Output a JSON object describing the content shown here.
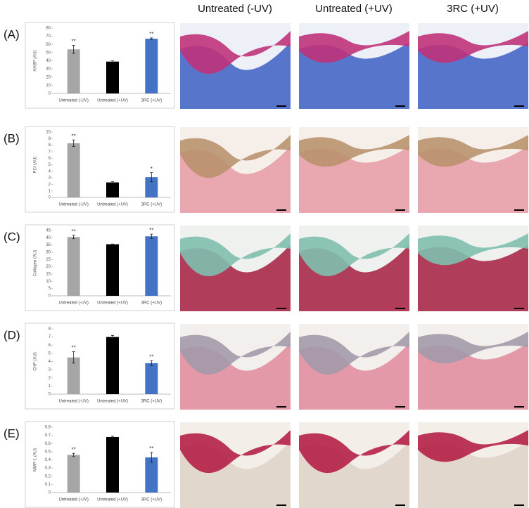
{
  "column_headers": [
    "Untreated (-UV)",
    "Untreated (+UV)",
    "3RC (+UV)"
  ],
  "panel_labels": [
    "(A)",
    "(B)",
    "(C)",
    "(D)",
    "(E)"
  ],
  "chart_data": [
    {
      "type": "bar",
      "ylabel": "HABP (AU)",
      "categories": [
        "Untreated (-UV)",
        "Untreated (+UV)",
        "3RC (+UV)"
      ],
      "values": [
        54,
        39,
        67
      ],
      "errors": [
        5,
        1,
        1
      ],
      "significance": [
        "**",
        null,
        "**"
      ],
      "colors": [
        "#a6a6a6",
        "#000000",
        "#4472c4"
      ],
      "ylim": [
        0,
        80
      ],
      "yticks": [
        0,
        10,
        20,
        30,
        40,
        50,
        60,
        70,
        80
      ]
    },
    {
      "type": "bar",
      "ylabel": "PCI (AU)",
      "categories": [
        "Untreated (-UV)",
        "Untreated (+UV)",
        "3RC (+UV)"
      ],
      "values": [
        8.3,
        2.3,
        3.1
      ],
      "errors": [
        0.5,
        0.1,
        0.7
      ],
      "significance": [
        "**",
        null,
        "*"
      ],
      "colors": [
        "#a6a6a6",
        "#000000",
        "#4472c4"
      ],
      "ylim": [
        0,
        10
      ],
      "yticks": [
        0,
        1,
        2,
        3,
        4,
        5,
        6,
        7,
        8,
        9,
        10
      ]
    },
    {
      "type": "bar",
      "ylabel": "Collagen (AU)",
      "categories": [
        "Untreated (-UV)",
        "Untreated (+UV)",
        "3RC (+UV)"
      ],
      "values": [
        40.5,
        35.5,
        41
      ],
      "errors": [
        1.2,
        0.2,
        1.5
      ],
      "significance": [
        "**",
        null,
        "**"
      ],
      "colors": [
        "#a6a6a6",
        "#000000",
        "#4472c4"
      ],
      "ylim": [
        0,
        45
      ],
      "yticks": [
        0,
        5,
        10,
        15,
        20,
        25,
        30,
        35,
        40,
        45
      ]
    },
    {
      "type": "bar",
      "ylabel": "CHP (AU)",
      "categories": [
        "Untreated (-UV)",
        "Untreated (+UV)",
        "3RC (+UV)"
      ],
      "values": [
        4.5,
        7,
        3.8
      ],
      "errors": [
        0.7,
        0.2,
        0.3
      ],
      "significance": [
        "**",
        null,
        "**"
      ],
      "colors": [
        "#a6a6a6",
        "#000000",
        "#4472c4"
      ],
      "ylim": [
        0,
        8
      ],
      "yticks": [
        0,
        1,
        2,
        3,
        4,
        5,
        6,
        7,
        8
      ]
    },
    {
      "type": "bar",
      "ylabel": "MMP-1 (AU)",
      "categories": [
        "Untreated (-UV)",
        "Untreated (+UV)",
        "3RC (+UV)"
      ],
      "values": [
        0.46,
        0.68,
        0.43
      ],
      "errors": [
        0.02,
        0.01,
        0.06
      ],
      "significance": [
        "**",
        null,
        "**"
      ],
      "colors": [
        "#a6a6a6",
        "#000000",
        "#4472c4"
      ],
      "ylim": [
        0,
        0.8
      ],
      "yticks": [
        0,
        0.1,
        0.2,
        0.3,
        0.4,
        0.5,
        0.6,
        0.7,
        0.8
      ]
    }
  ]
}
